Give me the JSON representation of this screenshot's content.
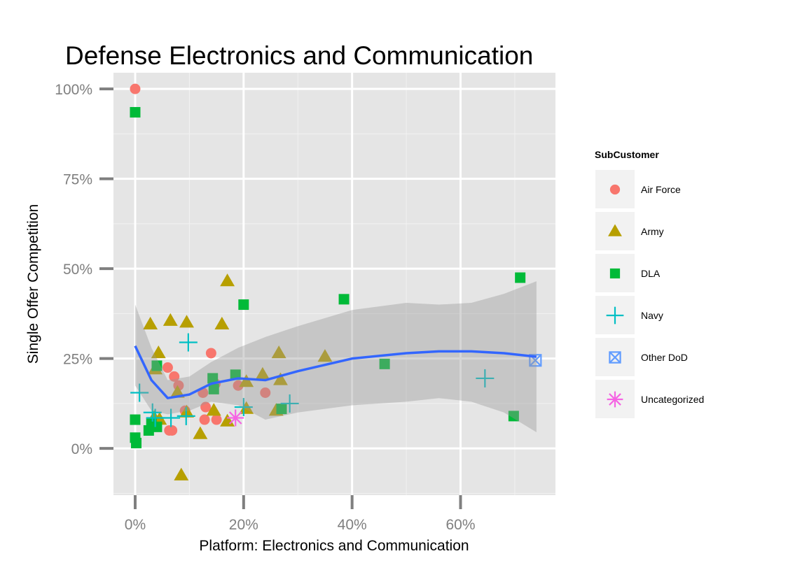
{
  "chart_data": {
    "type": "scatter",
    "title": "Defense Electronics and  Communication",
    "xlabel": "Platform: Electronics and Communication",
    "ylabel": "Single Offer Competition",
    "xlim": [
      -0.04,
      0.775
    ],
    "ylim": [
      -0.13,
      1.045
    ],
    "x_ticks": [
      {
        "value": 0,
        "label": "0%"
      },
      {
        "value": 0.2,
        "label": "20%"
      },
      {
        "value": 0.4,
        "label": "40%"
      },
      {
        "value": 0.6,
        "label": "60%"
      }
    ],
    "y_ticks": [
      {
        "value": 0,
        "label": "0%"
      },
      {
        "value": 0.25,
        "label": "25%"
      },
      {
        "value": 0.5,
        "label": "50%"
      },
      {
        "value": 0.75,
        "label": "75%"
      },
      {
        "value": 1.0,
        "label": "100%"
      }
    ],
    "grid": true,
    "legend": {
      "title": "SubCustomer",
      "position": "right"
    },
    "series": [
      {
        "name": "Air Force",
        "marker": "circle",
        "color": "#F8766D",
        "points": [
          [
            0.0,
            1.0
          ],
          [
            0.06,
            0.225
          ],
          [
            0.072,
            0.2
          ],
          [
            0.08,
            0.175
          ],
          [
            0.063,
            0.05
          ],
          [
            0.068,
            0.05
          ],
          [
            0.092,
            0.105
          ],
          [
            0.125,
            0.155
          ],
          [
            0.13,
            0.115
          ],
          [
            0.14,
            0.265
          ],
          [
            0.148,
            0.18
          ],
          [
            0.128,
            0.08
          ],
          [
            0.15,
            0.08
          ],
          [
            0.19,
            0.175
          ],
          [
            0.24,
            0.155
          ]
        ]
      },
      {
        "name": "Army",
        "marker": "triangle",
        "color": "#B79F00",
        "points": [
          [
            0.028,
            0.345
          ],
          [
            0.065,
            0.355
          ],
          [
            0.095,
            0.35
          ],
          [
            0.043,
            0.265
          ],
          [
            0.037,
            0.22
          ],
          [
            0.16,
            0.345
          ],
          [
            0.17,
            0.465
          ],
          [
            0.205,
            0.185
          ],
          [
            0.235,
            0.205
          ],
          [
            0.265,
            0.265
          ],
          [
            0.268,
            0.19
          ],
          [
            0.35,
            0.255
          ],
          [
            0.035,
            0.085
          ],
          [
            0.045,
            0.08
          ],
          [
            0.078,
            0.155
          ],
          [
            0.095,
            0.1
          ],
          [
            0.12,
            0.04
          ],
          [
            0.145,
            0.105
          ],
          [
            0.17,
            0.075
          ],
          [
            0.205,
            0.11
          ],
          [
            0.26,
            0.105
          ],
          [
            0.085,
            -0.075
          ]
        ]
      },
      {
        "name": "DLA",
        "marker": "square",
        "color": "#00BA38",
        "points": [
          [
            0.0,
            0.935
          ],
          [
            0.0,
            0.08
          ],
          [
            0.0,
            0.03
          ],
          [
            0.002,
            0.015
          ],
          [
            0.025,
            0.05
          ],
          [
            0.03,
            0.07
          ],
          [
            0.04,
            0.06
          ],
          [
            0.04,
            0.23
          ],
          [
            0.143,
            0.195
          ],
          [
            0.145,
            0.165
          ],
          [
            0.185,
            0.205
          ],
          [
            0.2,
            0.4
          ],
          [
            0.27,
            0.11
          ],
          [
            0.385,
            0.415
          ],
          [
            0.46,
            0.235
          ],
          [
            0.698,
            0.09
          ],
          [
            0.71,
            0.475
          ]
        ]
      },
      {
        "name": "Navy",
        "marker": "plus",
        "color": "#00BFC4",
        "points": [
          [
            0.008,
            0.155
          ],
          [
            0.098,
            0.295
          ],
          [
            0.032,
            0.1
          ],
          [
            0.037,
            0.085
          ],
          [
            0.066,
            0.085
          ],
          [
            0.094,
            0.09
          ],
          [
            0.2,
            0.115
          ],
          [
            0.285,
            0.125
          ],
          [
            0.645,
            0.195
          ]
        ]
      },
      {
        "name": "Other DoD",
        "marker": "boxx",
        "color": "#619CFF",
        "points": [
          [
            0.738,
            0.245
          ]
        ]
      },
      {
        "name": "Uncategorized",
        "marker": "asterisk",
        "color": "#F564E3",
        "points": [
          [
            0.185,
            0.085
          ]
        ]
      }
    ],
    "smooth": {
      "color": "#3366FF",
      "x": [
        0.0,
        0.03,
        0.06,
        0.1,
        0.14,
        0.19,
        0.24,
        0.3,
        0.4,
        0.5,
        0.56,
        0.62,
        0.68,
        0.74
      ],
      "y": [
        0.285,
        0.19,
        0.14,
        0.15,
        0.18,
        0.195,
        0.19,
        0.215,
        0.25,
        0.265,
        0.27,
        0.27,
        0.265,
        0.255
      ],
      "ci_upper": [
        0.4,
        0.28,
        0.19,
        0.2,
        0.24,
        0.28,
        0.31,
        0.34,
        0.385,
        0.405,
        0.4,
        0.405,
        0.43,
        0.465
      ],
      "ci_lower": [
        0.175,
        0.105,
        0.095,
        0.105,
        0.13,
        0.12,
        0.08,
        0.1,
        0.12,
        0.13,
        0.14,
        0.13,
        0.1,
        0.045
      ]
    }
  }
}
